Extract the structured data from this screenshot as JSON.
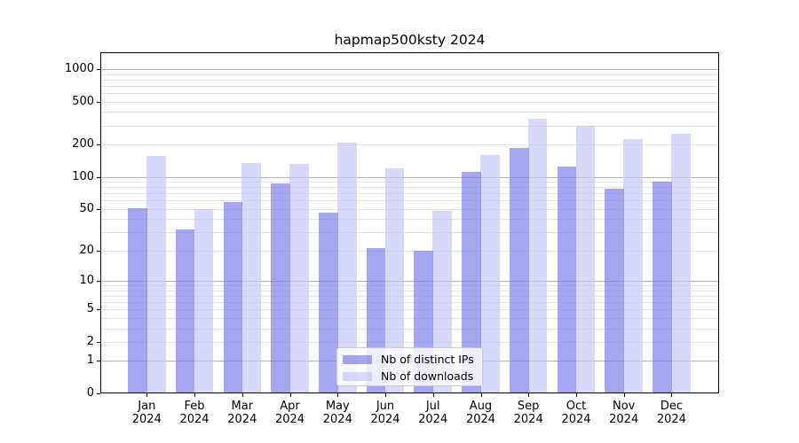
{
  "title": "hapmap500ksty 2024",
  "chart_data": {
    "type": "bar",
    "title": "hapmap500ksty 2024",
    "categories": [
      "Jan",
      "Feb",
      "Mar",
      "Apr",
      "May",
      "Jun",
      "Jul",
      "Aug",
      "Sep",
      "Oct",
      "Nov",
      "Dec"
    ],
    "category_year": "2024",
    "series": [
      {
        "name": "Nb of distinct IPs",
        "color": "#8888ee",
        "values": [
          51,
          32,
          58,
          87,
          46,
          21,
          20,
          111,
          185,
          124,
          78,
          90
        ]
      },
      {
        "name": "Nb of downloads",
        "color": "#ccccff",
        "values": [
          155,
          50,
          134,
          132,
          208,
          120,
          48,
          158,
          345,
          300,
          225,
          253
        ]
      }
    ],
    "xlabel": "",
    "ylabel": "",
    "y_scale": "log(1+y)",
    "y_ticks": [
      0,
      1,
      2,
      5,
      10,
      20,
      50,
      100,
      200,
      500,
      1000
    ],
    "y_minor_gridlines": [
      2,
      3,
      4,
      5,
      6,
      7,
      8,
      9,
      20,
      30,
      40,
      50,
      60,
      70,
      80,
      90,
      200,
      300,
      400,
      500,
      600,
      700,
      800,
      900
    ],
    "y_major_gridlines": [
      1,
      10,
      100,
      1000
    ],
    "ylim": [
      0,
      1400
    ],
    "grid": true,
    "legend_position": "lower center"
  },
  "colors": {
    "bar_ips": "rgba(124,124,235,0.68)",
    "bar_downloads": "rgba(198,198,248,0.68)",
    "grid_major": "#b4b4b4",
    "grid_minor": "#e4e4e4",
    "axis": "#000000",
    "legend_border": "#cccccc"
  }
}
